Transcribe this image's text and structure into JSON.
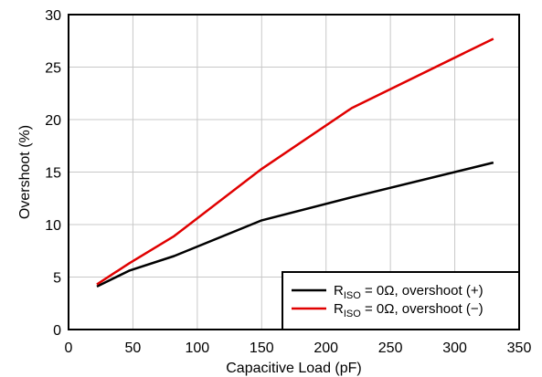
{
  "chart_data": {
    "type": "line",
    "title": "",
    "xlabel": "Capacitive Load (pF)",
    "ylabel": "Overshoot (%)",
    "xlim": [
      0,
      350
    ],
    "ylim": [
      0,
      30
    ],
    "xticks": [
      0,
      50,
      100,
      150,
      200,
      250,
      300,
      350
    ],
    "yticks": [
      0,
      5,
      10,
      15,
      20,
      25,
      30
    ],
    "grid": true,
    "legend_position": "bottom-right",
    "series": [
      {
        "name_main": "R",
        "name_sub": "ISO",
        "name_rest": " = 0Ω, overshoot (+)",
        "color": "#000000",
        "x": [
          22,
          47,
          82,
          150,
          220,
          330
        ],
        "y": [
          4.1,
          5.6,
          7.0,
          10.4,
          12.6,
          15.9
        ]
      },
      {
        "name_main": "R",
        "name_sub": "ISO",
        "name_rest": " = 0Ω, overshoot (−)",
        "color": "#e00000",
        "x": [
          22,
          47,
          82,
          150,
          220,
          330
        ],
        "y": [
          4.3,
          6.3,
          8.9,
          15.3,
          21.1,
          27.7
        ]
      }
    ]
  }
}
